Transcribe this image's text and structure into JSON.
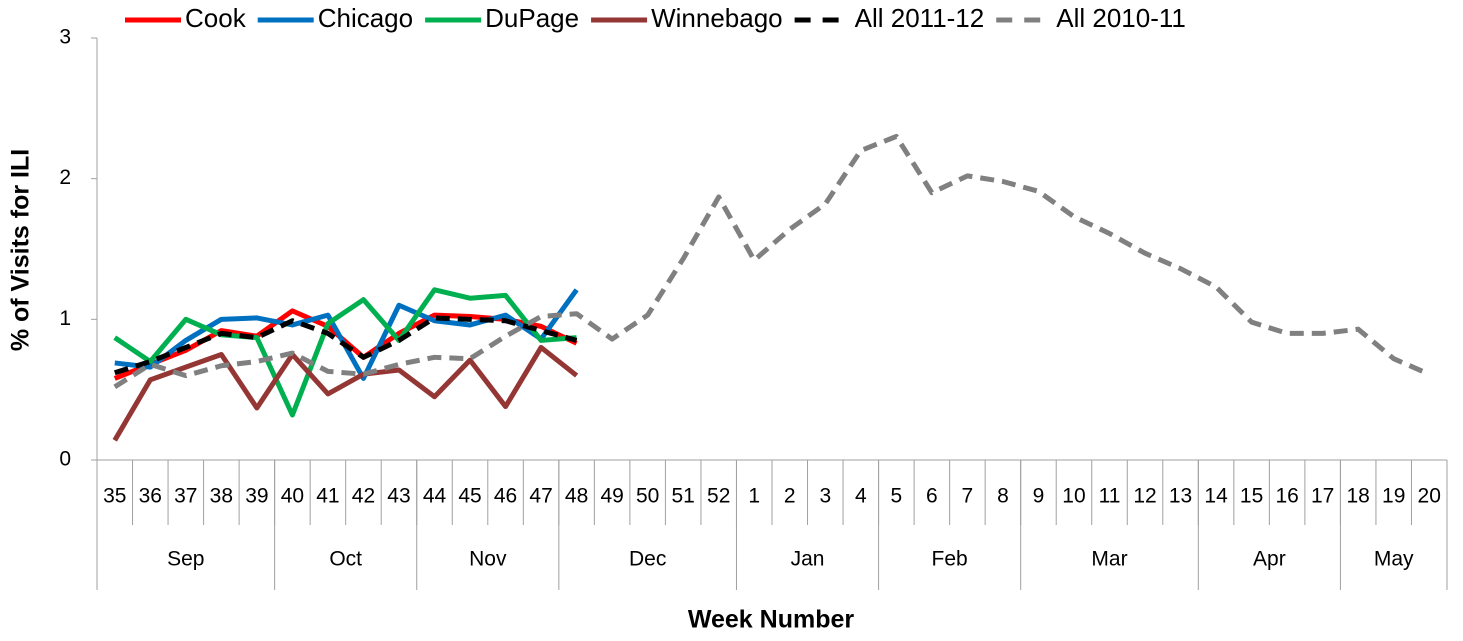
{
  "chart_data": {
    "type": "line",
    "xlabel": "Week Number",
    "ylabel": "% of Visits for ILI",
    "categories": [
      "35",
      "36",
      "37",
      "38",
      "39",
      "40",
      "41",
      "42",
      "43",
      "44",
      "45",
      "46",
      "47",
      "48",
      "49",
      "50",
      "51",
      "52",
      "1",
      "2",
      "3",
      "4",
      "5",
      "6",
      "7",
      "8",
      "9",
      "10",
      "11",
      "12",
      "13",
      "14",
      "15",
      "16",
      "17",
      "18",
      "19",
      "20"
    ],
    "x_groups": [
      {
        "label": "Sep",
        "count": 5
      },
      {
        "label": "Oct",
        "count": 4
      },
      {
        "label": "Nov",
        "count": 4
      },
      {
        "label": "Dec",
        "count": 5
      },
      {
        "label": "Jan",
        "count": 4
      },
      {
        "label": "Feb",
        "count": 4
      },
      {
        "label": "Mar",
        "count": 5
      },
      {
        "label": "Apr",
        "count": 4
      },
      {
        "label": "May",
        "count": 3
      }
    ],
    "ylim": [
      0,
      3
    ],
    "yticks": [
      0,
      1,
      2,
      3
    ],
    "legend": "top",
    "series": [
      {
        "name": "Cook",
        "color": "#ff0000",
        "dashed": false,
        "values": [
          0.58,
          0.68,
          0.78,
          0.92,
          0.88,
          1.06,
          0.95,
          0.73,
          0.9,
          1.03,
          1.02,
          1.0,
          0.95,
          0.83,
          null,
          null,
          null,
          null,
          null,
          null,
          null,
          null,
          null,
          null,
          null,
          null,
          null,
          null,
          null,
          null,
          null,
          null,
          null,
          null,
          null,
          null,
          null,
          null
        ]
      },
      {
        "name": "Chicago",
        "color": "#0070c0",
        "dashed": false,
        "values": [
          0.69,
          0.66,
          0.85,
          1.0,
          1.01,
          0.96,
          1.03,
          0.58,
          1.1,
          0.99,
          0.96,
          1.03,
          0.86,
          1.21,
          null,
          null,
          null,
          null,
          null,
          null,
          null,
          null,
          null,
          null,
          null,
          null,
          null,
          null,
          null,
          null,
          null,
          null,
          null,
          null,
          null,
          null,
          null,
          null
        ]
      },
      {
        "name": "DuPage",
        "color": "#00b050",
        "dashed": false,
        "values": [
          0.87,
          0.7,
          1.0,
          0.89,
          0.87,
          0.32,
          0.97,
          1.14,
          0.85,
          1.21,
          1.15,
          1.17,
          0.85,
          0.87,
          null,
          null,
          null,
          null,
          null,
          null,
          null,
          null,
          null,
          null,
          null,
          null,
          null,
          null,
          null,
          null,
          null,
          null,
          null,
          null,
          null,
          null,
          null,
          null
        ]
      },
      {
        "name": "Winnebago",
        "color": "#943634",
        "dashed": false,
        "values": [
          0.14,
          0.57,
          0.66,
          0.75,
          0.37,
          0.75,
          0.47,
          0.61,
          0.64,
          0.45,
          0.71,
          0.38,
          0.8,
          0.6,
          null,
          null,
          null,
          null,
          null,
          null,
          null,
          null,
          null,
          null,
          null,
          null,
          null,
          null,
          null,
          null,
          null,
          null,
          null,
          null,
          null,
          null,
          null,
          null
        ]
      },
      {
        "name": "All 2011-12",
        "color": "#000000",
        "dashed": true,
        "values": [
          0.62,
          0.7,
          0.8,
          0.9,
          0.87,
          0.99,
          0.9,
          0.73,
          0.85,
          1.01,
          1.0,
          0.99,
          0.92,
          0.85,
          null,
          null,
          null,
          null,
          null,
          null,
          null,
          null,
          null,
          null,
          null,
          null,
          null,
          null,
          null,
          null,
          null,
          null,
          null,
          null,
          null,
          null,
          null,
          null
        ]
      },
      {
        "name": "All 2010-11",
        "color": "#808080",
        "dashed": true,
        "values": [
          0.52,
          0.68,
          0.6,
          0.67,
          0.7,
          0.76,
          0.63,
          0.61,
          0.68,
          0.73,
          0.72,
          0.88,
          1.02,
          1.04,
          0.86,
          1.03,
          1.43,
          1.87,
          1.42,
          1.64,
          1.82,
          2.2,
          2.3,
          1.9,
          2.02,
          1.98,
          1.91,
          1.73,
          1.61,
          1.47,
          1.36,
          1.23,
          0.98,
          0.9,
          0.9,
          0.93,
          0.72,
          0.61
        ]
      }
    ]
  }
}
